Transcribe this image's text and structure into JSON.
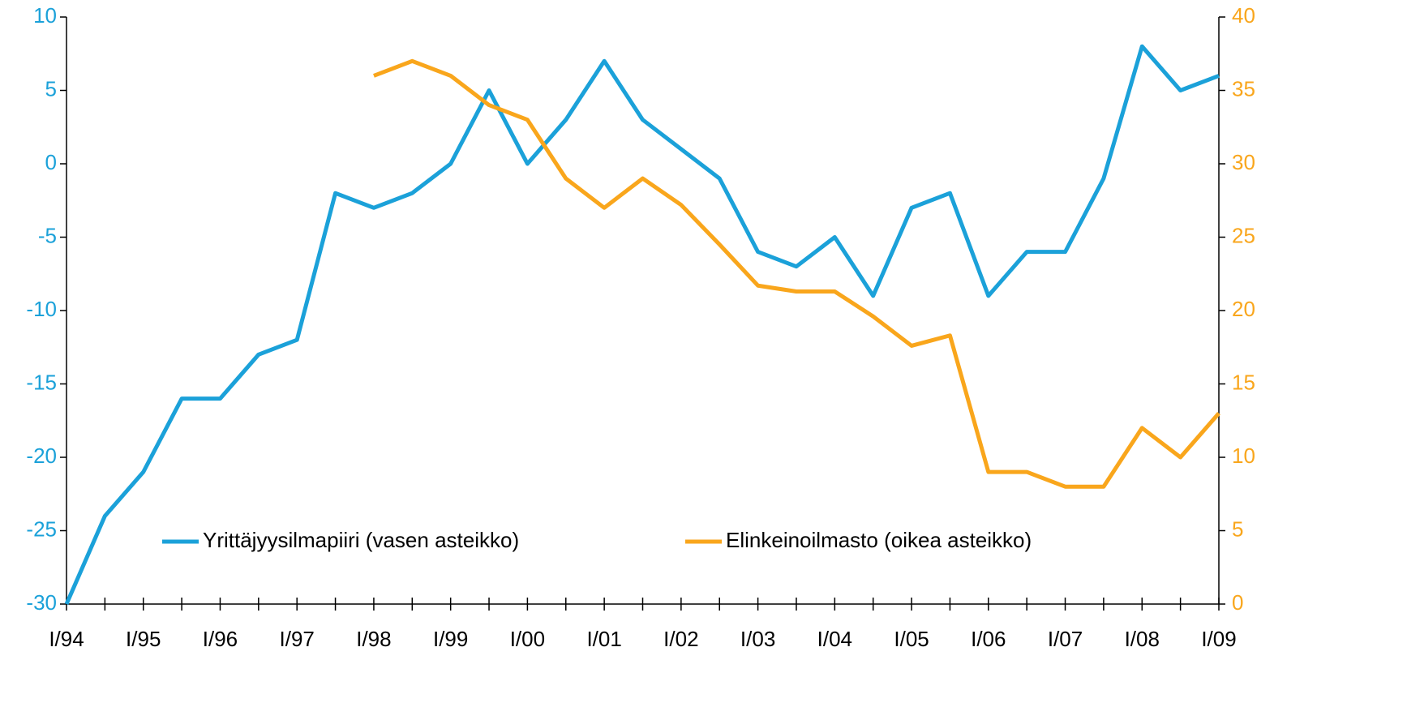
{
  "chart_data": {
    "type": "line",
    "categories": [
      "I/94",
      null,
      "I/95",
      null,
      "I/96",
      null,
      "I/97",
      null,
      "I/98",
      null,
      "I/99",
      null,
      "I/00",
      null,
      "I/01",
      null,
      "I/02",
      null,
      "I/03",
      null,
      "I/04",
      null,
      "I/05",
      null,
      "I/06",
      null,
      "I/07",
      null,
      "I/08",
      null,
      "I/09"
    ],
    "series": [
      {
        "name": "Yrittäjyysilmapiiri (vasen asteikko)",
        "color": "#1ba1d9",
        "axis": "y",
        "values": [
          -30,
          -24,
          -21,
          -16,
          -16,
          -13,
          -12,
          -2,
          -3,
          -2,
          0,
          5,
          0,
          3,
          7,
          3,
          1,
          -1,
          -6,
          -7,
          -5,
          -9,
          -3,
          -2,
          -9,
          -6,
          -6,
          -1,
          8,
          5,
          6
        ]
      },
      {
        "name": "Elinkeinoilmasto (oikea asteikko)",
        "color": "#f9a61c",
        "axis": "y2",
        "values": [
          null,
          null,
          null,
          null,
          null,
          null,
          null,
          null,
          36,
          37,
          36,
          34,
          33,
          29,
          27,
          29,
          27.2,
          24.5,
          21.7,
          21.3,
          21.3,
          19.6,
          17.6,
          18.3,
          9,
          9,
          8,
          8,
          12,
          10,
          13
        ]
      }
    ],
    "ylim": [
      -30,
      10
    ],
    "yticks": [
      -30,
      -25,
      -20,
      -15,
      -10,
      -5,
      0,
      5,
      10
    ],
    "y2lim": [
      0,
      40
    ],
    "y2ticks": [
      0,
      5,
      10,
      15,
      20,
      25,
      30,
      35,
      40
    ],
    "legend": "lower center",
    "grid": false
  }
}
